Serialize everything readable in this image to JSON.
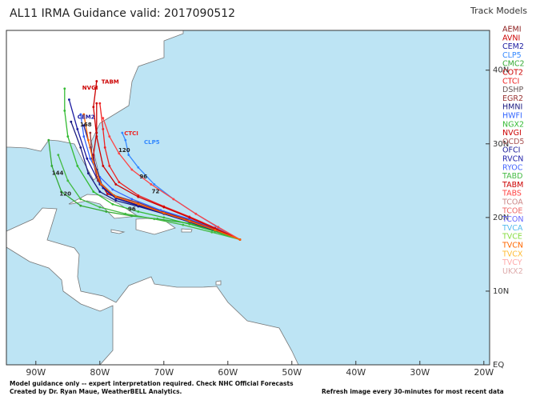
{
  "header": {
    "title": "AL11 IRMA Guidance valid: 2017090512",
    "legend_title": "Track Models"
  },
  "map": {
    "xlim": [
      -94.6,
      -19.1
    ],
    "ylim": [
      0,
      45.4
    ],
    "xticks": [
      {
        "value": -90,
        "label": "90W"
      },
      {
        "value": -80,
        "label": "80W"
      },
      {
        "value": -70,
        "label": "70W"
      },
      {
        "value": -60,
        "label": "60W"
      },
      {
        "value": -50,
        "label": "50W"
      },
      {
        "value": -40,
        "label": "40W"
      },
      {
        "value": -30,
        "label": "30W"
      },
      {
        "value": -20,
        "label": "20W"
      }
    ],
    "yticks": [
      {
        "value": 0,
        "label": "EQ"
      },
      {
        "value": 10,
        "label": "10N"
      },
      {
        "value": 20,
        "label": "20N"
      },
      {
        "value": 30,
        "label": "30N"
      },
      {
        "value": 40,
        "label": "40N"
      }
    ]
  },
  "models": [
    {
      "name": "AEMI",
      "color": "#8b1a1a"
    },
    {
      "name": "AVNI",
      "color": "#cc0000",
      "lon": [
        -58.1,
        -62,
        -66.5,
        -71,
        -75.5,
        -78.8,
        -80.5,
        -81,
        -80.5,
        -80.5
      ],
      "lat": [
        17,
        18.4,
        19.8,
        21,
        22.2,
        23.2,
        25.5,
        28.5,
        31.5,
        35.5
      ]
    },
    {
      "name": "CEM2",
      "color": "#1a1aa0",
      "lon": [
        -58.1,
        -62,
        -66,
        -70,
        -74,
        -77.5,
        -80,
        -82,
        -83.5,
        -84.8
      ],
      "lat": [
        17,
        18.2,
        19.4,
        20.5,
        21.6,
        22.6,
        24.5,
        28,
        32,
        36
      ]
    },
    {
      "name": "CLP5",
      "color": "#3388ff",
      "lon": [
        -58.1,
        -61.5,
        -65,
        -68.5,
        -71.5,
        -74,
        -75.5,
        -76,
        -76.5
      ],
      "lat": [
        17,
        18.6,
        20.5,
        22.5,
        24.5,
        26.8,
        28.5,
        30.5,
        31.5
      ]
    },
    {
      "name": "CMC2",
      "color": "#33aa33",
      "lon": [
        -58.1,
        -62,
        -66,
        -71,
        -75,
        -79,
        -83,
        -86,
        -87.5,
        -88
      ],
      "lat": [
        17,
        18.2,
        19.2,
        19.8,
        20.2,
        20.8,
        21.6,
        23.5,
        27,
        30.5
      ]
    },
    {
      "name": "COT2",
      "color": "#cc0000"
    },
    {
      "name": "CTCI",
      "color": "#ee2222",
      "lon": [
        -58.1,
        -62,
        -66,
        -70,
        -74,
        -77,
        -78.5,
        -79.2,
        -79.5,
        -80
      ],
      "lat": [
        17,
        18.6,
        20.1,
        21.5,
        23,
        24.8,
        27,
        29.5,
        32,
        35.5
      ]
    },
    {
      "name": "DSHP",
      "color": "#665555"
    },
    {
      "name": "EGR2",
      "color": "#993333",
      "lon": [
        -58.1,
        -62,
        -66,
        -70,
        -74,
        -77.8,
        -80.3,
        -81.2,
        -81.5
      ],
      "lat": [
        17,
        18.4,
        19.7,
        20.8,
        22,
        23,
        25,
        28,
        31.5
      ]
    },
    {
      "name": "HMNI",
      "color": "#1a1a80",
      "lon": [
        -58.1,
        -62,
        -66,
        -70,
        -74,
        -77.5,
        -80,
        -81.8,
        -83,
        -84.5
      ],
      "lat": [
        17,
        18.2,
        19.4,
        20.5,
        21.5,
        22.3,
        23.5,
        26,
        29.5,
        33
      ]
    },
    {
      "name": "HWFI",
      "color": "#3366ff",
      "lon": [
        -58.1,
        -62,
        -66,
        -70.5,
        -75,
        -78,
        -80,
        -81.5,
        -82.5,
        -83
      ],
      "lat": [
        17,
        18.5,
        19.8,
        21,
        22.5,
        23.8,
        25.5,
        28,
        31,
        34
      ]
    },
    {
      "name": "NGX2",
      "color": "#33bb33",
      "lon": [
        -58.1,
        -62,
        -66,
        -70,
        -74,
        -78,
        -81,
        -83.5,
        -85,
        -85.5,
        -85.5
      ],
      "lat": [
        17,
        18.1,
        19.1,
        20,
        20.8,
        21.8,
        23.5,
        27,
        31,
        34.5,
        37.5
      ]
    },
    {
      "name": "NVGI",
      "color": "#cc0000"
    },
    {
      "name": "OCD5",
      "color": "#aa5555"
    },
    {
      "name": "OFCI",
      "color": "#1a1a99",
      "lon": [
        -58.1,
        -62,
        -66,
        -70,
        -74,
        -77.5,
        -79.5,
        -80.5,
        -81.5,
        -82.5
      ],
      "lat": [
        17,
        18.3,
        19.5,
        20.6,
        21.7,
        22.6,
        24,
        26.5,
        29.5,
        32.5
      ]
    },
    {
      "name": "RVCN",
      "color": "#2222aa"
    },
    {
      "name": "RYOC",
      "color": "#4466ff"
    },
    {
      "name": "TABD",
      "color": "#44bb44",
      "lon": [
        -58.1,
        -62.5,
        -67,
        -71.5,
        -76,
        -80,
        -83,
        -85,
        -86.5
      ],
      "lat": [
        17,
        18,
        19,
        19.8,
        20.5,
        21.4,
        22.5,
        25,
        28.5
      ]
    },
    {
      "name": "TABM",
      "color": "#cc0000",
      "lon": [
        -58.1,
        -62,
        -66,
        -70,
        -74,
        -77.5,
        -79.5,
        -80.5,
        -81,
        -80.5
      ],
      "lat": [
        17,
        18.5,
        20,
        21.4,
        22.8,
        24.5,
        27,
        31,
        35,
        38.5
      ]
    },
    {
      "name": "TABS",
      "color": "#ff4444",
      "lon": [
        -58.1,
        -61.5,
        -65,
        -68.5,
        -72,
        -75,
        -77,
        -78.5,
        -79.5
      ],
      "lat": [
        17,
        18.7,
        20.5,
        22.5,
        24.5,
        26.5,
        28.7,
        31,
        33.5
      ]
    },
    {
      "name": "TCOA",
      "color": "#cc8888"
    },
    {
      "name": "TCOE",
      "color": "#ee6666"
    },
    {
      "name": "TCON",
      "color": "#6666ff"
    },
    {
      "name": "TVCA",
      "color": "#55bbee"
    },
    {
      "name": "TVCE",
      "color": "#88dd44"
    },
    {
      "name": "TVCN",
      "color": "#ff6600",
      "lon": [
        -58.1,
        -62,
        -66,
        -70,
        -74,
        -77.5,
        -79.8,
        -81,
        -81.8,
        -82.5
      ],
      "lat": [
        17,
        18.3,
        19.5,
        20.6,
        21.8,
        22.8,
        24.5,
        27.5,
        30.5,
        34
      ]
    },
    {
      "name": "TVCX",
      "color": "#ffbb33"
    },
    {
      "name": "TVCY",
      "color": "#ffaaaa"
    },
    {
      "name": "UKX2",
      "color": "#ddaaaa"
    }
  ],
  "map_labels": [
    {
      "text": "CTCI",
      "lon": -76.2,
      "lat": 31.4,
      "color": "#ee2222"
    },
    {
      "text": "CLP5",
      "lon": -73.1,
      "lat": 30.2,
      "color": "#3388ff"
    },
    {
      "text": "NVGI",
      "lon": -82.75,
      "lat": 37.6,
      "color": "#cc0000"
    },
    {
      "text": "TABM",
      "lon": -79.75,
      "lat": 38.4,
      "color": "#cc0000"
    },
    {
      "text": "CEM2",
      "lon": -83.5,
      "lat": 33.6,
      "color": "#1a1aa0"
    },
    {
      "text": "168",
      "lon": -83.1,
      "lat": 32.6,
      "color": "#222222"
    },
    {
      "text": "120",
      "lon": -77.1,
      "lat": 29.1,
      "color": "#222222"
    },
    {
      "text": "144",
      "lon": -87.5,
      "lat": 26,
      "color": "#222222"
    },
    {
      "text": "120",
      "lon": -86.3,
      "lat": 23.2,
      "color": "#222222"
    },
    {
      "text": "96",
      "lon": -73.8,
      "lat": 25.5,
      "color": "#222222"
    },
    {
      "text": "72",
      "lon": -71.9,
      "lat": 23.5,
      "color": "#222222"
    },
    {
      "text": "96",
      "lon": -75.6,
      "lat": 21.1,
      "color": "#222222"
    }
  ],
  "footer": {
    "line1": "Model guidance only -- expert interpretation required.  Check NHC Official Forecasts",
    "line2": "Created by Dr. Ryan Maue, WeatherBELL Analytics.",
    "right": "Refresh image every 30-minutes for most recent data"
  }
}
